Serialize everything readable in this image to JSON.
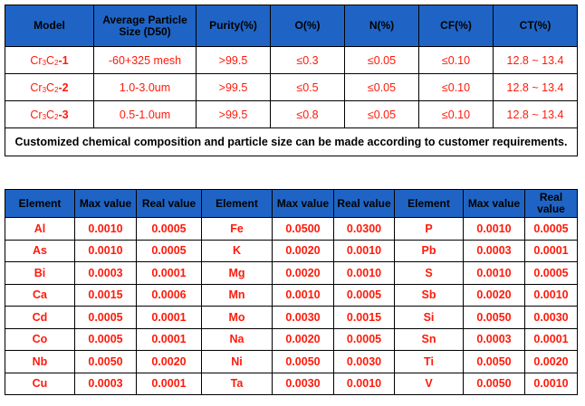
{
  "spec_table": {
    "headers": [
      "Model",
      "Average Particle Size (D50)",
      "Purity(%)",
      "O(%)",
      "N(%)",
      "CF(%)",
      "CT(%)"
    ],
    "rows": [
      {
        "model_base": "Cr",
        "sub1": "3",
        "mid": "C",
        "sub2": "2",
        "suffix": "-1",
        "size": "-60+325 mesh",
        "purity": ">99.5",
        "o": "≤0.3",
        "n": "≤0.05",
        "cf": "≤0.10",
        "ct": "12.8 ~ 13.4"
      },
      {
        "model_base": "Cr",
        "sub1": "3",
        "mid": "C",
        "sub2": "2",
        "suffix": "-2",
        "size": "1.0-3.0um",
        "purity": ">99.5",
        "o": "≤0.5",
        "n": "≤0.05",
        "cf": "≤0.10",
        "ct": "12.8 ~ 13.4"
      },
      {
        "model_base": "Cr",
        "sub1": "3",
        "mid": "C",
        "sub2": "2",
        "suffix": "-3",
        "size": "0.5-1.0um",
        "purity": ">99.5",
        "o": "≤0.8",
        "n": "≤0.05",
        "cf": "≤0.10",
        "ct": "12.8 ~ 13.4"
      }
    ],
    "note": "Customized chemical composition and particle size can be made according to customer requirements."
  },
  "element_table": {
    "headers": [
      "Element",
      "Max value",
      "Real value",
      "Element",
      "Max value",
      "Real value",
      "Element",
      "Max value",
      "Real value"
    ],
    "rows": [
      [
        "Al",
        "0.0010",
        "0.0005",
        "Fe",
        "0.0500",
        "0.0300",
        "P",
        "0.0010",
        "0.0005"
      ],
      [
        "As",
        "0.0010",
        "0.0005",
        "K",
        "0.0020",
        "0.0010",
        "Pb",
        "0.0003",
        "0.0001"
      ],
      [
        "Bi",
        "0.0003",
        "0.0001",
        "Mg",
        "0.0020",
        "0.0010",
        "S",
        "0.0010",
        "0.0005"
      ],
      [
        "Ca",
        "0.0015",
        "0.0006",
        "Mn",
        "0.0010",
        "0.0005",
        "Sb",
        "0.0020",
        "0.0010"
      ],
      [
        "Cd",
        "0.0005",
        "0.0001",
        "Mo",
        "0.0030",
        "0.0015",
        "Si",
        "0.0050",
        "0.0030"
      ],
      [
        "Co",
        "0.0005",
        "0.0001",
        "Na",
        "0.0020",
        "0.0005",
        "Sn",
        "0.0003",
        "0.0001"
      ],
      [
        "Nb",
        "0.0050",
        "0.0020",
        "Ni",
        "0.0050",
        "0.0030",
        "Ti",
        "0.0050",
        "0.0020"
      ],
      [
        "Cu",
        "0.0003",
        "0.0001",
        "Ta",
        "0.0030",
        "0.0010",
        "V",
        "0.0050",
        "0.0010"
      ]
    ]
  },
  "colors": {
    "header_bg": "#1f64c4",
    "value_text": "#ff1a0a",
    "border": "#000000"
  }
}
